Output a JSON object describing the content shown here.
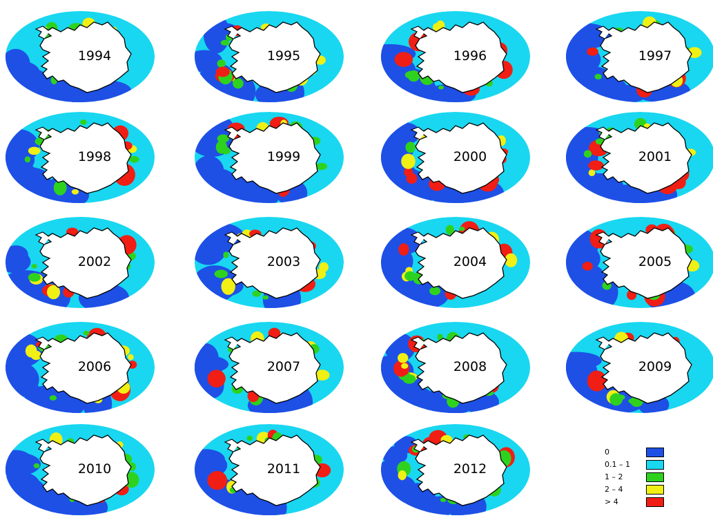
{
  "panels": [
    {
      "year": "1994"
    },
    {
      "year": "1995"
    },
    {
      "year": "1996"
    },
    {
      "year": "1997"
    },
    {
      "year": "1998"
    },
    {
      "year": "1999"
    },
    {
      "year": "2000"
    },
    {
      "year": "2001"
    },
    {
      "year": "2002"
    },
    {
      "year": "2003"
    },
    {
      "year": "2004"
    },
    {
      "year": "2005"
    },
    {
      "year": "2006"
    },
    {
      "year": "2007"
    },
    {
      "year": "2008"
    },
    {
      "year": "2009"
    },
    {
      "year": "2010"
    },
    {
      "year": "2011"
    },
    {
      "year": "2012"
    }
  ],
  "legend": {
    "items": [
      {
        "label": "0",
        "color": "#1e50e6"
      },
      {
        "label": "0.1 – 1",
        "color": "#19d7f0"
      },
      {
        "label": "1 – 2",
        "color": "#2ed21e"
      },
      {
        "label": "2 – 4",
        "color": "#f0f014"
      },
      {
        "label": "> 4",
        "color": "#f01e14"
      }
    ]
  }
}
